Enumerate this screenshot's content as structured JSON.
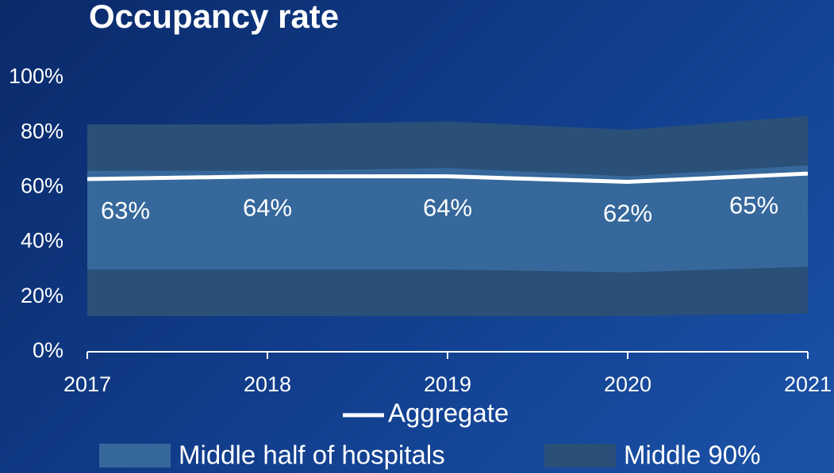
{
  "chart_data": {
    "type": "area",
    "title": "Occupancy rate",
    "x": [
      2017,
      2018,
      2019,
      2020,
      2021
    ],
    "xlim": [
      2017,
      2021
    ],
    "xticks": [
      2017,
      2018,
      2019,
      2020,
      2021
    ],
    "ylim": [
      0,
      100
    ],
    "yticks": [
      {
        "value": 0,
        "label": "0%"
      },
      {
        "value": 20,
        "label": "20%"
      },
      {
        "value": 40,
        "label": "40%"
      },
      {
        "value": 60,
        "label": "60%"
      },
      {
        "value": 80,
        "label": "80%"
      },
      {
        "value": 100,
        "label": "100%"
      }
    ],
    "bands": [
      {
        "name": "Middle 90%",
        "color": "#2a5078",
        "lower": [
          13,
          13,
          13,
          13,
          14
        ],
        "upper": [
          83,
          83,
          84,
          81,
          86
        ]
      },
      {
        "name": "Middle half of hospitals",
        "color": "#36689c",
        "lower": [
          30,
          30,
          30,
          29,
          31
        ],
        "upper": [
          66,
          66,
          67,
          64,
          68
        ]
      }
    ],
    "series": [
      {
        "name": "Aggregate",
        "color": "#ffffff",
        "values": [
          63,
          64,
          64,
          62,
          65
        ],
        "value_labels": [
          "63%",
          "64%",
          "64%",
          "62%",
          "65%"
        ]
      }
    ]
  }
}
